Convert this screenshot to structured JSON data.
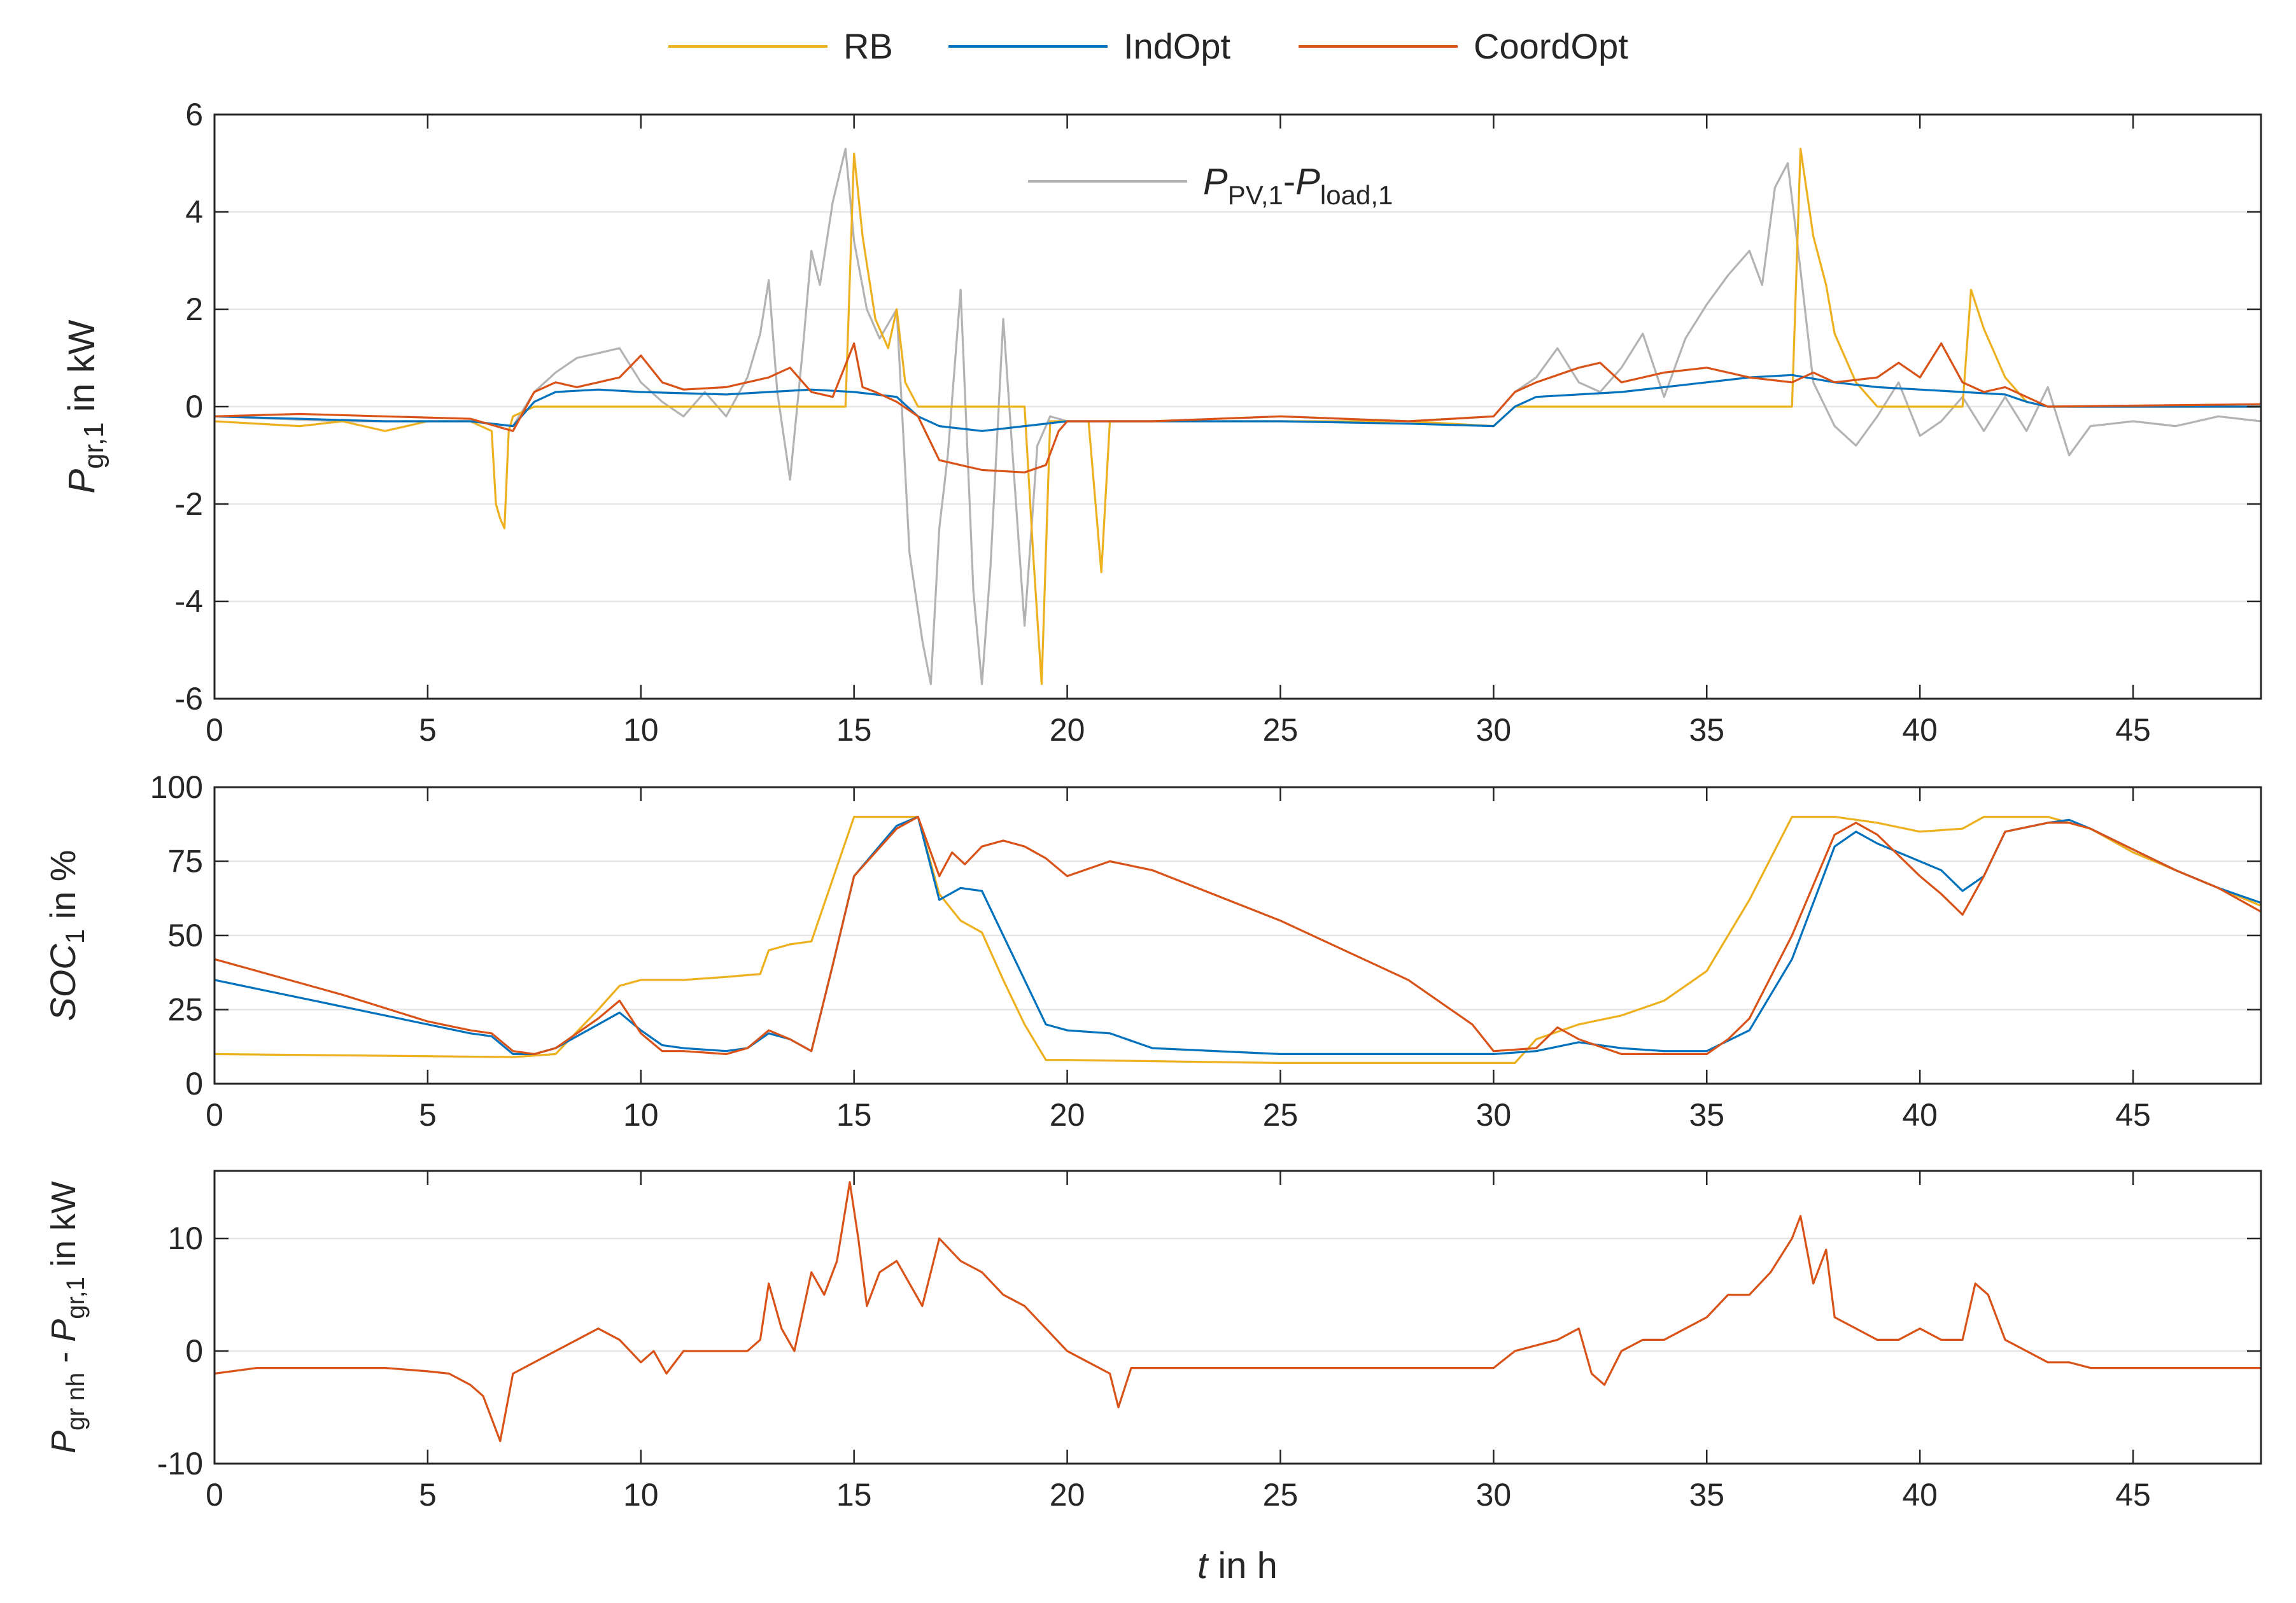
{
  "chart_data": [
    {
      "type": "line",
      "panel": "top",
      "ylabel": {
        "main": "P",
        "sub": "gr,1",
        "rest": " in kW"
      },
      "xlim": [
        0,
        48
      ],
      "ylim": [
        -6,
        6
      ],
      "xticks": [
        0,
        5,
        10,
        15,
        20,
        25,
        30,
        35,
        40,
        45
      ],
      "yticks": [
        -6,
        -4,
        -2,
        0,
        2,
        4,
        6
      ],
      "annotation": {
        "p": "P",
        "pv_sub": "PV,1",
        "dash": "-",
        "load_sub": "load,1"
      },
      "series": [
        {
          "name": "P_PV,1-P_load,1",
          "color": "#b3b3b3",
          "x": [
            0,
            3,
            6,
            7,
            7.5,
            8,
            8.5,
            9,
            9.5,
            10,
            10.5,
            11,
            11.5,
            12,
            12.5,
            12.8,
            13,
            13.2,
            13.5,
            13.8,
            14,
            14.2,
            14.5,
            14.8,
            15,
            15.3,
            15.6,
            16,
            16.3,
            16.6,
            16.8,
            17,
            17.2,
            17.5,
            17.8,
            18,
            18.2,
            18.5,
            18.8,
            19,
            19.3,
            19.6,
            20,
            22,
            25,
            28,
            30,
            30.5,
            31,
            31.5,
            32,
            32.5,
            33,
            33.5,
            34,
            34.5,
            35,
            35.5,
            36,
            36.3,
            36.6,
            36.9,
            37.2,
            37.5,
            38,
            38.5,
            39,
            39.5,
            40,
            40.5,
            41,
            41.5,
            42,
            42.5,
            43,
            43.5,
            44,
            45,
            46,
            47,
            48
          ],
          "y": [
            -0.2,
            -0.3,
            -0.3,
            -0.4,
            0.3,
            0.7,
            1.0,
            1.1,
            1.2,
            0.5,
            0.1,
            -0.2,
            0.3,
            -0.2,
            0.6,
            1.5,
            2.6,
            0.3,
            -1.5,
            1.2,
            3.2,
            2.5,
            4.2,
            5.3,
            3.4,
            2.0,
            1.4,
            2.0,
            -3.0,
            -4.8,
            -5.7,
            -2.5,
            -1.0,
            2.4,
            -3.8,
            -5.7,
            -3.3,
            1.8,
            -2.0,
            -4.5,
            -0.8,
            -0.2,
            -0.3,
            -0.3,
            -0.2,
            -0.3,
            -0.2,
            0.3,
            0.6,
            1.2,
            0.5,
            0.3,
            0.8,
            1.5,
            0.2,
            1.4,
            2.1,
            2.7,
            3.2,
            2.5,
            4.5,
            5.0,
            2.8,
            0.5,
            -0.4,
            -0.8,
            -0.2,
            0.5,
            -0.6,
            -0.3,
            0.2,
            -0.5,
            0.2,
            -0.5,
            0.4,
            -1.0,
            -0.4,
            -0.3,
            -0.4,
            -0.2,
            -0.3
          ]
        },
        {
          "name": "RB",
          "color": "#edb120",
          "x": [
            0,
            2,
            3,
            4,
            5,
            6,
            6.5,
            6.6,
            6.7,
            6.8,
            6.9,
            7,
            7.5,
            8,
            12,
            14.5,
            14.8,
            15,
            15.2,
            15.5,
            15.8,
            16,
            16.2,
            16.5,
            16.8,
            17,
            19,
            19.2,
            19.4,
            19.6,
            20,
            20.5,
            20.8,
            21,
            22,
            25,
            28,
            30,
            30.5,
            31,
            35,
            37,
            37.2,
            37.5,
            37.8,
            38,
            38.5,
            39,
            40,
            41,
            41.2,
            41.5,
            42,
            42.5,
            43,
            44,
            48
          ],
          "y": [
            -0.3,
            -0.4,
            -0.3,
            -0.5,
            -0.3,
            -0.3,
            -0.5,
            -2.0,
            -2.3,
            -2.5,
            -0.5,
            -0.2,
            0.0,
            0.0,
            0.0,
            0.0,
            0.0,
            5.2,
            3.5,
            1.8,
            1.2,
            2.0,
            0.5,
            0.0,
            0.0,
            0.0,
            0.0,
            -3.0,
            -5.7,
            -0.3,
            -0.3,
            -0.3,
            -3.4,
            -0.3,
            -0.3,
            -0.3,
            -0.3,
            -0.4,
            0.0,
            0.0,
            0.0,
            0.0,
            5.3,
            3.5,
            2.5,
            1.5,
            0.5,
            0.0,
            0.0,
            0.0,
            2.4,
            1.6,
            0.6,
            0.1,
            0.0,
            0.0,
            0.0
          ]
        },
        {
          "name": "IndOpt",
          "color": "#0072bd",
          "x": [
            0,
            2,
            4,
            6,
            7,
            7.5,
            8,
            9,
            10,
            12,
            13,
            14,
            15,
            16,
            16.5,
            17,
            18,
            19,
            20,
            22,
            25,
            28,
            30,
            30.5,
            31,
            33,
            35,
            36,
            37,
            38,
            39,
            40,
            41,
            42,
            42.5,
            43,
            48
          ],
          "y": [
            -0.2,
            -0.25,
            -0.3,
            -0.3,
            -0.4,
            0.1,
            0.3,
            0.35,
            0.3,
            0.25,
            0.3,
            0.35,
            0.3,
            0.2,
            -0.2,
            -0.4,
            -0.5,
            -0.4,
            -0.3,
            -0.3,
            -0.3,
            -0.35,
            -0.4,
            0.0,
            0.2,
            0.3,
            0.5,
            0.6,
            0.65,
            0.5,
            0.4,
            0.35,
            0.3,
            0.25,
            0.1,
            0.0,
            0.0
          ]
        },
        {
          "name": "CoordOpt",
          "color": "#d95319",
          "x": [
            0,
            2,
            4,
            6,
            7,
            7.5,
            8,
            8.5,
            9,
            9.5,
            10,
            10.5,
            11,
            12,
            13,
            13.5,
            14,
            14.5,
            15,
            15.2,
            15.5,
            16,
            16.5,
            17,
            18,
            19,
            19.5,
            19.8,
            20,
            22,
            25,
            28,
            30,
            30.5,
            31,
            32,
            32.5,
            33,
            34,
            35,
            36,
            37,
            37.5,
            38,
            39,
            39.5,
            40,
            40.5,
            41,
            41.5,
            42,
            42.5,
            43,
            48
          ],
          "y": [
            -0.2,
            -0.15,
            -0.2,
            -0.25,
            -0.5,
            0.3,
            0.5,
            0.4,
            0.5,
            0.6,
            1.05,
            0.5,
            0.35,
            0.4,
            0.6,
            0.8,
            0.3,
            0.2,
            1.3,
            0.4,
            0.3,
            0.1,
            -0.2,
            -1.1,
            -1.3,
            -1.35,
            -1.2,
            -0.5,
            -0.3,
            -0.3,
            -0.2,
            -0.3,
            -0.2,
            0.3,
            0.5,
            0.8,
            0.9,
            0.5,
            0.7,
            0.8,
            0.6,
            0.5,
            0.7,
            0.5,
            0.6,
            0.9,
            0.6,
            1.3,
            0.5,
            0.3,
            0.4,
            0.2,
            0.0,
            0.05
          ]
        }
      ]
    },
    {
      "type": "line",
      "panel": "middle",
      "ylabel": {
        "main": "SOC",
        "sub": "1",
        "rest": " in %"
      },
      "xlim": [
        0,
        48
      ],
      "ylim": [
        0,
        100
      ],
      "xticks": [
        0,
        5,
        10,
        15,
        20,
        25,
        30,
        35,
        40,
        45
      ],
      "yticks": [
        0,
        25,
        50,
        75,
        100
      ],
      "series": [
        {
          "name": "RB",
          "color": "#edb120",
          "x": [
            0,
            7,
            8,
            9,
            9.5,
            10,
            11,
            12,
            12.8,
            13,
            13.5,
            14,
            15,
            16,
            16.5,
            17,
            17.5,
            18,
            18.5,
            19,
            19.5,
            20,
            25,
            30,
            30.5,
            31,
            32,
            33,
            34,
            35,
            36,
            37,
            38,
            39,
            40,
            41,
            41.5,
            42,
            43,
            44,
            45,
            46,
            47,
            48
          ],
          "y": [
            10,
            9,
            10,
            25,
            33,
            35,
            35,
            36,
            37,
            45,
            47,
            48,
            90,
            90,
            90,
            64,
            55,
            51,
            35,
            20,
            8,
            8,
            7,
            7,
            7,
            15,
            20,
            23,
            28,
            38,
            62,
            90,
            90,
            88,
            85,
            86,
            90,
            90,
            90,
            86,
            78,
            72,
            66,
            60
          ]
        },
        {
          "name": "IndOpt",
          "color": "#0072bd",
          "x": [
            0,
            1,
            3,
            5,
            6,
            6.5,
            7,
            7.5,
            8,
            9,
            9.5,
            10,
            10.5,
            11,
            12,
            12.5,
            13,
            13.5,
            14,
            14.5,
            15,
            16,
            16.5,
            17,
            17.5,
            18,
            18.5,
            19,
            19.5,
            20,
            21,
            22,
            25,
            28,
            30,
            31,
            32,
            33,
            34,
            35,
            36,
            37,
            38,
            38.5,
            39,
            40,
            40.5,
            41,
            41.5,
            42,
            43,
            43.5,
            44,
            45,
            46,
            47,
            48
          ],
          "y": [
            35,
            32,
            26,
            20,
            17,
            16,
            10,
            10,
            12,
            20,
            24,
            18,
            13,
            12,
            11,
            12,
            17,
            15,
            11,
            40,
            70,
            87,
            90,
            62,
            66,
            65,
            50,
            35,
            20,
            18,
            17,
            12,
            10,
            10,
            10,
            11,
            14,
            12,
            11,
            11,
            18,
            42,
            80,
            85,
            81,
            75,
            72,
            65,
            70,
            85,
            88,
            89,
            86,
            79,
            72,
            66,
            61
          ]
        },
        {
          "name": "CoordOpt",
          "color": "#d95319",
          "x": [
            0,
            1,
            3,
            5,
            6,
            6.5,
            7,
            7.5,
            8,
            9,
            9.5,
            10,
            10.5,
            11,
            12,
            12.5,
            13,
            13.5,
            14,
            14.5,
            15,
            16,
            16.5,
            17,
            17.3,
            17.6,
            18,
            18.5,
            19,
            19.5,
            20,
            21,
            22,
            25,
            28,
            29.5,
            30,
            31,
            31.5,
            32,
            33,
            34,
            35,
            35.5,
            36,
            37,
            38,
            38.5,
            39,
            40,
            40.5,
            41,
            41.5,
            42,
            43,
            43.5,
            44,
            45,
            46,
            47,
            48
          ],
          "y": [
            42,
            38,
            30,
            21,
            18,
            17,
            11,
            10,
            12,
            22,
            28,
            17,
            11,
            11,
            10,
            12,
            18,
            15,
            11,
            40,
            70,
            86,
            90,
            70,
            78,
            74,
            80,
            82,
            80,
            76,
            70,
            75,
            72,
            55,
            35,
            20,
            11,
            12,
            19,
            15,
            10,
            10,
            10,
            15,
            22,
            50,
            84,
            88,
            84,
            70,
            64,
            57,
            70,
            85,
            88,
            88,
            86,
            79,
            72,
            66,
            58
          ]
        }
      ]
    },
    {
      "type": "line",
      "panel": "bottom",
      "ylabel": {
        "main": "P",
        "sub1": "gr nh",
        "dash": " - ",
        "main2": "P",
        "sub2": "gr,1",
        "rest": " in kW"
      },
      "xlabel": {
        "var": "t",
        "rest": " in h"
      },
      "xlim": [
        0,
        48
      ],
      "ylim": [
        -10,
        16
      ],
      "xticks": [
        0,
        5,
        10,
        15,
        20,
        25,
        30,
        35,
        40,
        45
      ],
      "yticks": [
        -10,
        0,
        10
      ],
      "series": [
        {
          "name": "P_gr nh - P_gr,1",
          "color": "#d95319",
          "x": [
            0,
            1,
            2,
            3,
            4,
            5,
            5.5,
            6,
            6.3,
            6.5,
            6.7,
            6.9,
            7,
            7.5,
            8,
            8.5,
            9,
            9.5,
            10,
            10.3,
            10.6,
            11,
            11.5,
            12,
            12.5,
            12.8,
            13,
            13.3,
            13.6,
            14,
            14.3,
            14.6,
            14.9,
            15.1,
            15.3,
            15.6,
            16,
            16.3,
            16.6,
            17,
            17.5,
            18,
            18.5,
            19,
            19.5,
            20,
            20.5,
            21,
            21.2,
            21.5,
            22,
            25,
            28,
            30,
            30.5,
            31,
            31.5,
            32,
            32.3,
            32.6,
            33,
            33.5,
            34,
            34.5,
            35,
            35.5,
            36,
            36.5,
            37,
            37.2,
            37.5,
            37.8,
            38,
            38.5,
            39,
            39.5,
            40,
            40.5,
            41,
            41.3,
            41.6,
            42,
            42.5,
            43,
            43.5,
            44,
            45,
            46,
            47,
            48
          ],
          "y": [
            -2,
            -1.5,
            -1.5,
            -1.5,
            -1.5,
            -1.8,
            -2,
            -3,
            -4,
            -6,
            -8,
            -4,
            -2,
            -1,
            0,
            1,
            2,
            1,
            -1,
            0,
            -2,
            0,
            0,
            0,
            0,
            1,
            6,
            2,
            0,
            7,
            5,
            8,
            15,
            10,
            4,
            7,
            8,
            6,
            4,
            10,
            8,
            7,
            5,
            4,
            2,
            0,
            -1,
            -2,
            -5,
            -1.5,
            -1.5,
            -1.5,
            -1.5,
            -1.5,
            0,
            0.5,
            1,
            2,
            -2,
            -3,
            0,
            1,
            1,
            2,
            3,
            5,
            5,
            7,
            10,
            12,
            6,
            9,
            3,
            2,
            1,
            1,
            2,
            1,
            1,
            6,
            5,
            1,
            0,
            -1,
            -1,
            -1.5,
            -1.5,
            -1.5,
            -1.5,
            -1.5
          ]
        }
      ]
    }
  ],
  "legend": {
    "items": [
      {
        "label": "RB",
        "color": "#edb120"
      },
      {
        "label": "IndOpt",
        "color": "#0072bd"
      },
      {
        "label": "CoordOpt",
        "color": "#d95319"
      }
    ],
    "placement": "top-center"
  }
}
